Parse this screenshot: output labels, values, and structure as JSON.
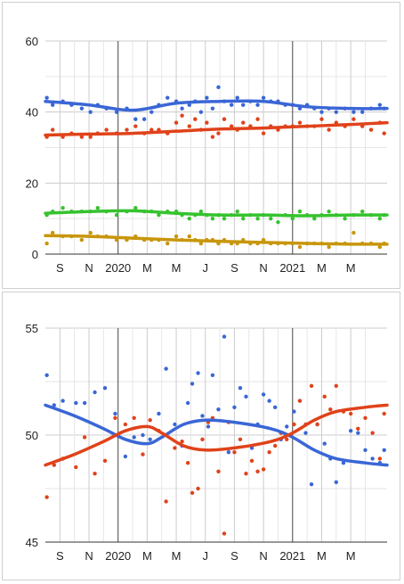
{
  "chart_data": [
    {
      "type": "scatter",
      "title": "",
      "xlabel": "",
      "ylabel": "",
      "x_ticks": [
        "S",
        "N",
        "2020",
        "M",
        "M",
        "J",
        "S",
        "N",
        "2021",
        "M",
        "M"
      ],
      "x_tick_months": [
        1,
        3,
        5,
        7,
        9,
        11,
        13,
        15,
        17,
        19,
        21
      ],
      "xlim_months": [
        0,
        23.5
      ],
      "ylim": [
        0,
        60
      ],
      "y_ticks": [
        0,
        20,
        40,
        60
      ],
      "grid": true,
      "legend": "none",
      "series": [
        {
          "color": "#3a66d6",
          "trend_x": [
            0,
            3,
            6,
            9,
            12,
            15,
            18,
            21,
            23.5
          ],
          "trend_y": [
            43,
            42,
            40.5,
            42.5,
            43,
            43,
            41.5,
            41,
            41
          ],
          "points_x": [
            0.1,
            0.5,
            1.2,
            1.8,
            2.5,
            3.1,
            3.6,
            4.2,
            4.9,
            5.6,
            6.2,
            6.8,
            7.3,
            7.8,
            8.4,
            9.0,
            9.4,
            9.9,
            10.3,
            10.7,
            11.1,
            11.5,
            11.9,
            12.3,
            12.8,
            13.2,
            13.6,
            14.1,
            14.6,
            15.0,
            15.5,
            16.0,
            16.5,
            17.0,
            17.5,
            18.0,
            18.5,
            19.0,
            19.5,
            20.0,
            20.6,
            21.2,
            21.8,
            22.4,
            23.0,
            23.3
          ],
          "points_y": [
            44,
            42,
            43,
            42,
            41,
            40,
            42,
            41,
            40,
            41,
            38,
            38,
            40,
            42,
            44,
            43,
            41,
            42,
            43,
            40,
            44,
            41,
            47,
            43,
            42,
            44,
            42,
            43,
            42,
            44,
            43,
            43,
            42,
            42,
            41,
            42,
            41,
            40,
            41,
            40,
            41,
            40,
            40,
            41,
            42,
            41
          ]
        },
        {
          "color": "#e0421a",
          "trend_x": [
            0,
            3,
            6,
            9,
            12,
            15,
            18,
            21,
            23.5
          ],
          "trend_y": [
            33.5,
            33.8,
            34,
            34.6,
            35.2,
            35.5,
            36,
            36.5,
            37
          ],
          "points_y": [
            33,
            35,
            33,
            34,
            33,
            33,
            34,
            35,
            34,
            35,
            36,
            34,
            35,
            35,
            34,
            37,
            39,
            36,
            38,
            35,
            37,
            33,
            34,
            38,
            36,
            35,
            37,
            36,
            38,
            34,
            36,
            35,
            36,
            36,
            37,
            36,
            36,
            38,
            35,
            37,
            36,
            38,
            36,
            35,
            37,
            34
          ],
          "points_x": [
            0.1,
            0.5,
            1.2,
            1.8,
            2.5,
            3.1,
            3.6,
            4.2,
            4.9,
            5.6,
            6.2,
            6.8,
            7.3,
            7.8,
            8.4,
            9.0,
            9.4,
            9.9,
            10.3,
            10.7,
            11.1,
            11.5,
            11.9,
            12.3,
            12.8,
            13.2,
            13.6,
            14.1,
            14.6,
            15.0,
            15.5,
            16.0,
            16.5,
            17.0,
            17.5,
            18.0,
            18.5,
            19.0,
            19.5,
            20.0,
            20.6,
            21.2,
            21.8,
            22.4,
            23.0,
            23.3
          ]
        },
        {
          "color": "#36c22e",
          "trend_x": [
            0,
            3,
            6,
            9,
            12,
            15,
            18,
            21,
            23.5
          ],
          "trend_y": [
            11.5,
            12,
            12.2,
            11.5,
            11,
            11,
            10.8,
            11,
            11
          ],
          "points_x": [
            0.1,
            0.5,
            1.2,
            1.8,
            2.5,
            3.1,
            3.6,
            4.2,
            4.9,
            5.6,
            6.2,
            6.8,
            7.3,
            7.8,
            8.4,
            9.0,
            9.4,
            9.9,
            10.3,
            10.7,
            11.1,
            11.5,
            11.9,
            12.3,
            12.8,
            13.2,
            13.6,
            14.1,
            14.6,
            15.0,
            15.5,
            16.0,
            16.5,
            17.0,
            17.5,
            18.0,
            18.5,
            19.0,
            19.5,
            20.0,
            20.6,
            21.2,
            21.8,
            22.4,
            23.0,
            23.3
          ],
          "points_y": [
            11,
            12,
            13,
            12,
            12,
            12,
            13,
            12,
            11,
            12,
            13,
            12,
            12,
            11,
            12,
            12,
            11,
            10,
            11,
            12,
            11,
            10,
            11,
            10,
            11,
            12,
            10,
            11,
            10,
            11,
            10,
            9,
            11,
            10,
            12,
            11,
            10,
            11,
            12,
            11,
            10,
            11,
            12,
            11,
            10,
            11
          ]
        },
        {
          "color": "#c8960c",
          "trend_x": [
            0,
            3,
            6,
            9,
            12,
            15,
            18,
            21,
            23.5
          ],
          "trend_y": [
            5.2,
            5,
            4.5,
            4,
            3.6,
            3.3,
            3,
            2.8,
            2.8
          ],
          "points_x": [
            0.1,
            0.5,
            1.2,
            1.8,
            2.5,
            3.1,
            3.6,
            4.2,
            4.9,
            5.6,
            6.2,
            6.8,
            7.3,
            7.8,
            8.4,
            9.0,
            9.4,
            9.9,
            10.3,
            10.7,
            11.1,
            11.5,
            11.9,
            12.3,
            12.8,
            13.2,
            13.6,
            14.1,
            14.6,
            15.0,
            15.5,
            16.0,
            16.5,
            17.0,
            17.5,
            18.0,
            18.5,
            19.0,
            19.5,
            20.0,
            20.6,
            21.2,
            21.8,
            22.4,
            23.0,
            23.3
          ],
          "points_y": [
            3,
            6,
            5,
            5,
            4,
            6,
            5,
            5,
            4,
            4,
            5,
            4,
            4,
            4,
            3,
            5,
            4,
            5,
            4,
            3,
            4,
            4,
            3,
            4,
            3,
            3,
            4,
            3,
            3,
            4,
            3,
            3,
            3,
            3,
            2,
            3,
            3,
            3,
            2,
            3,
            3,
            6,
            3,
            3,
            2,
            3
          ]
        }
      ]
    },
    {
      "type": "scatter",
      "title": "",
      "xlabel": "",
      "ylabel": "",
      "x_ticks": [
        "S",
        "N",
        "2020",
        "M",
        "M",
        "J",
        "S",
        "N",
        "2021",
        "M",
        "M"
      ],
      "x_tick_months": [
        1,
        3,
        5,
        7,
        9,
        11,
        13,
        15,
        17,
        19,
        21
      ],
      "xlim_months": [
        0,
        23.5
      ],
      "ylim": [
        45,
        55
      ],
      "y_ticks": [
        45,
        50,
        55
      ],
      "grid": true,
      "legend": "none",
      "series": [
        {
          "color": "#3a66d6",
          "trend_x": [
            0,
            2,
            4,
            5.5,
            7,
            8,
            9.5,
            11,
            13,
            15.5,
            17,
            18.5,
            20,
            22,
            23.5
          ],
          "trend_y": [
            51.4,
            50.9,
            50.3,
            49.8,
            49.6,
            49.9,
            50.5,
            50.7,
            50.6,
            50.3,
            49.9,
            49.3,
            48.9,
            48.7,
            48.6
          ],
          "points_x": [
            0.1,
            0.6,
            1.2,
            2.1,
            2.7,
            3.4,
            4.1,
            4.8,
            5.5,
            6.1,
            6.7,
            7.2,
            7.8,
            8.3,
            8.9,
            9.4,
            9.8,
            10.1,
            10.5,
            10.8,
            11.2,
            11.5,
            11.9,
            12.3,
            12.6,
            13.0,
            13.4,
            13.8,
            14.2,
            14.6,
            15.0,
            15.4,
            15.8,
            16.2,
            16.6,
            17.1,
            17.5,
            17.9,
            18.3,
            18.7,
            19.2,
            19.6,
            20.0,
            20.5,
            21.0,
            21.5,
            22.0,
            22.5,
            23.0,
            23.3
          ],
          "points_y": [
            52.8,
            51.4,
            51.6,
            51.5,
            51.5,
            52,
            52.2,
            51,
            49,
            49.9,
            50,
            49.8,
            51,
            53.1,
            50.5,
            49.5,
            51.5,
            52.4,
            52.9,
            50.9,
            50.4,
            52.8,
            51.2,
            54.6,
            49.2,
            51.3,
            52.2,
            51.8,
            49.4,
            50.5,
            51.9,
            51.6,
            51.3,
            49.8,
            50.4,
            51.1,
            51.6,
            50.1,
            47.7,
            50.5,
            49.6,
            48.9,
            47.8,
            48.7,
            50.2,
            50.1,
            49.3,
            48.9,
            48.7,
            49.3
          ]
        },
        {
          "color": "#e0421a",
          "trend_x": [
            0,
            2,
            4,
            5.5,
            7,
            8,
            9.5,
            11,
            13,
            15.5,
            17,
            18.5,
            20,
            22,
            23.5
          ],
          "trend_y": [
            48.6,
            49.1,
            49.7,
            50.2,
            50.4,
            50.1,
            49.5,
            49.3,
            49.4,
            49.7,
            50.1,
            50.7,
            51.1,
            51.3,
            51.4
          ],
          "points_x": [
            0.1,
            0.6,
            1.2,
            2.1,
            2.7,
            3.4,
            4.1,
            4.8,
            5.5,
            6.1,
            6.7,
            7.2,
            7.8,
            8.3,
            8.9,
            9.4,
            9.8,
            10.1,
            10.5,
            10.8,
            11.2,
            11.5,
            11.9,
            12.3,
            12.6,
            13.0,
            13.4,
            13.8,
            14.2,
            14.6,
            15.0,
            15.4,
            15.8,
            16.2,
            16.6,
            17.1,
            17.5,
            17.9,
            18.3,
            18.7,
            19.2,
            19.6,
            20.0,
            20.5,
            21.0,
            21.5,
            22.0,
            22.5,
            23.0,
            23.3
          ],
          "points_y": [
            47.1,
            48.6,
            48.9,
            48.5,
            49.9,
            48.2,
            48.8,
            50.8,
            50.5,
            50.8,
            49.1,
            50.7,
            50.2,
            46.9,
            49.4,
            49.7,
            48.7,
            47.3,
            47.5,
            49.8,
            50.6,
            50.8,
            48.3,
            45.4,
            50.6,
            49.2,
            49.8,
            48.2,
            48.8,
            48.3,
            48.4,
            49.2,
            49.5,
            50.1,
            49.8,
            50.5,
            51.6,
            50.5,
            52.3,
            50.5,
            51.8,
            51.2,
            52.3,
            51.1,
            51.0,
            50.3,
            50.8,
            50.1,
            48.9,
            51.0
          ]
        }
      ]
    }
  ]
}
